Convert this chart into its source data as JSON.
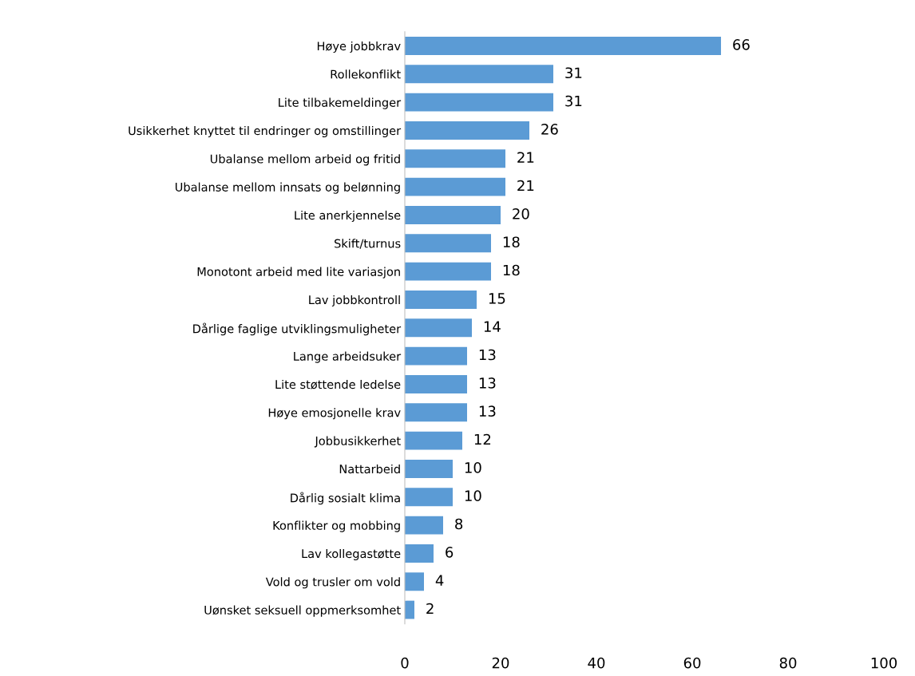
{
  "chart_data": {
    "type": "bar",
    "orientation": "horizontal",
    "categories": [
      "Høye jobbkrav",
      "Rollekonflikt",
      "Lite tilbakemeldinger",
      "Usikkerhet knyttet til endringer og omstillinger",
      "Ubalanse mellom arbeid og fritid",
      "Ubalanse mellom innsats og belønning",
      "Lite anerkjennelse",
      "Skift/turnus",
      "Monotont arbeid med lite variasjon",
      "Lav jobbkontroll",
      "Dårlige faglige utviklingsmuligheter",
      "Lange arbeidsuker",
      "Lite støttende ledelse",
      "Høye emosjonelle krav",
      "Jobbusikkerhet",
      "Nattarbeid",
      "Dårlig sosialt klima",
      "Konflikter og mobbing",
      "Lav kollegastøtte",
      "Vold og trusler om vold",
      "Uønsket seksuell oppmerksomhet"
    ],
    "values": [
      66,
      31,
      31,
      26,
      21,
      21,
      20,
      18,
      18,
      15,
      14,
      13,
      13,
      13,
      12,
      10,
      10,
      8,
      6,
      4,
      2
    ],
    "color": "#5b9bd5",
    "xlim": [
      0,
      100
    ],
    "xticks": [
      0,
      20,
      40,
      60,
      80,
      100
    ],
    "data_labels": true,
    "grid": false,
    "legend": false
  }
}
